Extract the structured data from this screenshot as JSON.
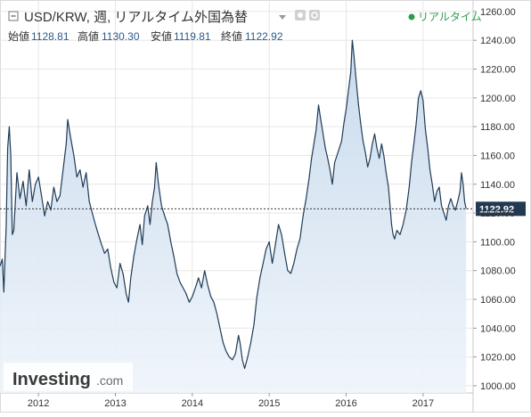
{
  "header": {
    "collapse_icon": "square-minus-icon",
    "title": "USD/KRW, 週, リアルタイム外国為替",
    "dropdown_icon": "triangle-down-icon",
    "settings_icon": "gear-icon",
    "refresh_icon": "refresh-icon",
    "realtime_label": "リアルタイム",
    "realtime_color": "#2a9d4b",
    "ohlc": {
      "open_label": "始値",
      "open_value": "1128.81",
      "high_label": "高値",
      "high_value": "1130.30",
      "low_label": "安値",
      "low_value": "1119.81",
      "close_label": "終値",
      "close_value": "1122.92"
    }
  },
  "watermark": {
    "brand": "Investing",
    "suffix": ".com"
  },
  "colors": {
    "line": "#1f3b57",
    "area_top": "#c7d9ec",
    "area_bottom": "#eef4fa",
    "grid": "#e6e6e6",
    "price_tag": "#213a52"
  },
  "chart_data": {
    "type": "area",
    "title": "USD/KRW, 週, リアルタイム外国為替",
    "x_ticks": [
      "2012",
      "2013",
      "2014",
      "2015",
      "2016",
      "2017"
    ],
    "y_ticks": [
      "1000.00",
      "1020.00",
      "1040.00",
      "1060.00",
      "1080.00",
      "1100.00",
      "1120.00",
      "1140.00",
      "1160.00",
      "1180.00",
      "1200.00",
      "1220.00",
      "1240.00",
      "1260.00"
    ],
    "ylim": [
      995,
      1268
    ],
    "xlim": [
      2011.5,
      2017.65
    ],
    "last_price": 1122.92,
    "last_price_label": "1122.92",
    "points": [
      [
        2011.5,
        1083
      ],
      [
        2011.53,
        1088
      ],
      [
        2011.55,
        1065
      ],
      [
        2011.58,
        1110
      ],
      [
        2011.6,
        1165
      ],
      [
        2011.62,
        1180
      ],
      [
        2011.64,
        1160
      ],
      [
        2011.66,
        1105
      ],
      [
        2011.68,
        1108
      ],
      [
        2011.72,
        1148
      ],
      [
        2011.76,
        1130
      ],
      [
        2011.8,
        1142
      ],
      [
        2011.84,
        1125
      ],
      [
        2011.88,
        1150
      ],
      [
        2011.92,
        1128
      ],
      [
        2011.96,
        1140
      ],
      [
        2012.0,
        1145
      ],
      [
        2012.04,
        1132
      ],
      [
        2012.08,
        1118
      ],
      [
        2012.12,
        1128
      ],
      [
        2012.16,
        1122
      ],
      [
        2012.2,
        1138
      ],
      [
        2012.24,
        1128
      ],
      [
        2012.28,
        1132
      ],
      [
        2012.32,
        1150
      ],
      [
        2012.36,
        1168
      ],
      [
        2012.38,
        1185
      ],
      [
        2012.42,
        1172
      ],
      [
        2012.46,
        1160
      ],
      [
        2012.5,
        1145
      ],
      [
        2012.54,
        1150
      ],
      [
        2012.58,
        1138
      ],
      [
        2012.62,
        1148
      ],
      [
        2012.66,
        1128
      ],
      [
        2012.7,
        1120
      ],
      [
        2012.74,
        1112
      ],
      [
        2012.78,
        1105
      ],
      [
        2012.82,
        1098
      ],
      [
        2012.86,
        1092
      ],
      [
        2012.9,
        1095
      ],
      [
        2012.94,
        1082
      ],
      [
        2012.98,
        1072
      ],
      [
        2013.02,
        1068
      ],
      [
        2013.06,
        1085
      ],
      [
        2013.1,
        1078
      ],
      [
        2013.14,
        1064
      ],
      [
        2013.17,
        1058
      ],
      [
        2013.2,
        1075
      ],
      [
        2013.24,
        1090
      ],
      [
        2013.28,
        1102
      ],
      [
        2013.32,
        1112
      ],
      [
        2013.35,
        1098
      ],
      [
        2013.38,
        1118
      ],
      [
        2013.42,
        1125
      ],
      [
        2013.45,
        1112
      ],
      [
        2013.48,
        1128
      ],
      [
        2013.51,
        1138
      ],
      [
        2013.53,
        1155
      ],
      [
        2013.56,
        1140
      ],
      [
        2013.6,
        1125
      ],
      [
        2013.64,
        1118
      ],
      [
        2013.68,
        1112
      ],
      [
        2013.72,
        1100
      ],
      [
        2013.76,
        1090
      ],
      [
        2013.8,
        1078
      ],
      [
        2013.84,
        1072
      ],
      [
        2013.88,
        1068
      ],
      [
        2013.92,
        1064
      ],
      [
        2013.96,
        1058
      ],
      [
        2014.0,
        1062
      ],
      [
        2014.04,
        1068
      ],
      [
        2014.08,
        1075
      ],
      [
        2014.12,
        1068
      ],
      [
        2014.16,
        1080
      ],
      [
        2014.2,
        1070
      ],
      [
        2014.24,
        1062
      ],
      [
        2014.28,
        1058
      ],
      [
        2014.32,
        1050
      ],
      [
        2014.36,
        1040
      ],
      [
        2014.4,
        1030
      ],
      [
        2014.44,
        1024
      ],
      [
        2014.48,
        1020
      ],
      [
        2014.52,
        1018
      ],
      [
        2014.56,
        1022
      ],
      [
        2014.6,
        1035
      ],
      [
        2014.62,
        1030
      ],
      [
        2014.65,
        1018
      ],
      [
        2014.68,
        1012
      ],
      [
        2014.72,
        1020
      ],
      [
        2014.76,
        1030
      ],
      [
        2014.8,
        1042
      ],
      [
        2014.84,
        1062
      ],
      [
        2014.88,
        1075
      ],
      [
        2014.92,
        1085
      ],
      [
        2014.96,
        1095
      ],
      [
        2015.0,
        1100
      ],
      [
        2015.04,
        1085
      ],
      [
        2015.08,
        1098
      ],
      [
        2015.12,
        1112
      ],
      [
        2015.16,
        1105
      ],
      [
        2015.2,
        1092
      ],
      [
        2015.24,
        1080
      ],
      [
        2015.28,
        1078
      ],
      [
        2015.32,
        1085
      ],
      [
        2015.36,
        1095
      ],
      [
        2015.4,
        1102
      ],
      [
        2015.44,
        1118
      ],
      [
        2015.48,
        1130
      ],
      [
        2015.52,
        1145
      ],
      [
        2015.55,
        1158
      ],
      [
        2015.58,
        1168
      ],
      [
        2015.61,
        1178
      ],
      [
        2015.64,
        1195
      ],
      [
        2015.67,
        1185
      ],
      [
        2015.7,
        1175
      ],
      [
        2015.73,
        1165
      ],
      [
        2015.76,
        1158
      ],
      [
        2015.79,
        1150
      ],
      [
        2015.82,
        1140
      ],
      [
        2015.85,
        1155
      ],
      [
        2015.88,
        1160
      ],
      [
        2015.91,
        1165
      ],
      [
        2015.94,
        1170
      ],
      [
        2015.97,
        1182
      ],
      [
        2016.0,
        1192
      ],
      [
        2016.03,
        1205
      ],
      [
        2016.06,
        1218
      ],
      [
        2016.08,
        1240
      ],
      [
        2016.1,
        1230
      ],
      [
        2016.13,
        1212
      ],
      [
        2016.16,
        1195
      ],
      [
        2016.19,
        1182
      ],
      [
        2016.22,
        1170
      ],
      [
        2016.25,
        1162
      ],
      [
        2016.28,
        1152
      ],
      [
        2016.31,
        1158
      ],
      [
        2016.34,
        1168
      ],
      [
        2016.37,
        1175
      ],
      [
        2016.4,
        1165
      ],
      [
        2016.43,
        1158
      ],
      [
        2016.46,
        1168
      ],
      [
        2016.49,
        1160
      ],
      [
        2016.52,
        1148
      ],
      [
        2016.55,
        1138
      ],
      [
        2016.57,
        1125
      ],
      [
        2016.59,
        1112
      ],
      [
        2016.61,
        1105
      ],
      [
        2016.63,
        1102
      ],
      [
        2016.66,
        1108
      ],
      [
        2016.7,
        1105
      ],
      [
        2016.74,
        1112
      ],
      [
        2016.78,
        1122
      ],
      [
        2016.82,
        1138
      ],
      [
        2016.85,
        1155
      ],
      [
        2016.88,
        1168
      ],
      [
        2016.91,
        1182
      ],
      [
        2016.94,
        1200
      ],
      [
        2016.97,
        1205
      ],
      [
        2017.0,
        1198
      ],
      [
        2017.03,
        1178
      ],
      [
        2017.06,
        1165
      ],
      [
        2017.09,
        1150
      ],
      [
        2017.12,
        1140
      ],
      [
        2017.15,
        1128
      ],
      [
        2017.18,
        1135
      ],
      [
        2017.21,
        1138
      ],
      [
        2017.24,
        1125
      ],
      [
        2017.27,
        1120
      ],
      [
        2017.3,
        1115
      ],
      [
        2017.33,
        1125
      ],
      [
        2017.36,
        1130
      ],
      [
        2017.39,
        1125
      ],
      [
        2017.42,
        1122
      ],
      [
        2017.45,
        1128
      ],
      [
        2017.48,
        1135
      ],
      [
        2017.5,
        1148
      ],
      [
        2017.52,
        1140
      ],
      [
        2017.54,
        1128
      ],
      [
        2017.56,
        1122.92
      ]
    ]
  }
}
